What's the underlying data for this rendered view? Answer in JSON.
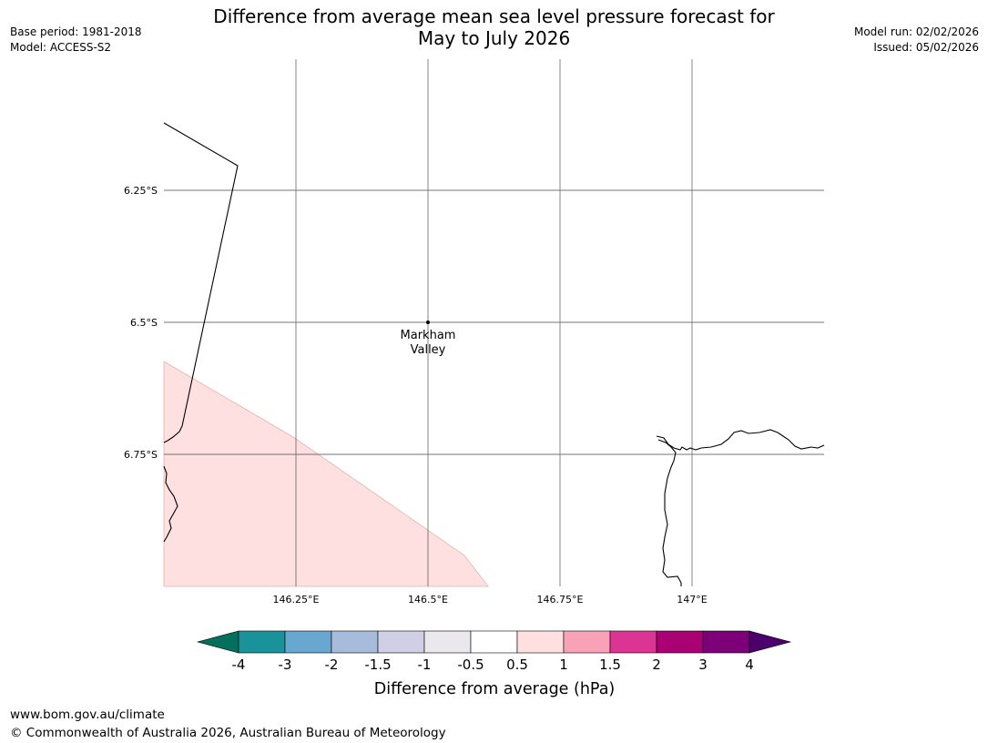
{
  "header": {
    "title_line1": "Difference from average mean sea level pressure forecast for",
    "title_line2": "May to July 2026",
    "base_period": "Base period: 1981-2018",
    "model": "Model: ACCESS-S2",
    "model_run": "Model run: 02/02/2026",
    "issued": "Issued: 05/02/2026"
  },
  "map": {
    "lat_labels": [
      "6.25°S",
      "6.5°S",
      "6.75°S"
    ],
    "lon_labels": [
      "146.25°E",
      "146.5°E",
      "146.75°E",
      "147°E"
    ],
    "place": {
      "name_line1": "Markham",
      "name_line2": "Valley",
      "lon": 146.5,
      "lat": -6.5
    },
    "shaded_category": "0.5 to 1",
    "land_color": "#000000"
  },
  "colorbar": {
    "tick_labels": [
      "-4",
      "-3",
      "-2",
      "-1.5",
      "-1",
      "-0.5",
      "0.5",
      "1",
      "1.5",
      "2",
      "3",
      "4"
    ],
    "colors": [
      "#056f5d",
      "#1a9299",
      "#68a8d0",
      "#a7bbdb",
      "#d0cfe6",
      "#eae8ec",
      "#ffffff",
      "#fde0df",
      "#f8a2b8",
      "#dc3493",
      "#ab0074",
      "#7e0079",
      "#4c006b"
    ],
    "label": "Difference from average (hPa)"
  },
  "footer": {
    "url": "www.bom.gov.au/climate",
    "copyright": "© Commonwealth of Australia 2026, Australian Bureau of Meteorology"
  }
}
